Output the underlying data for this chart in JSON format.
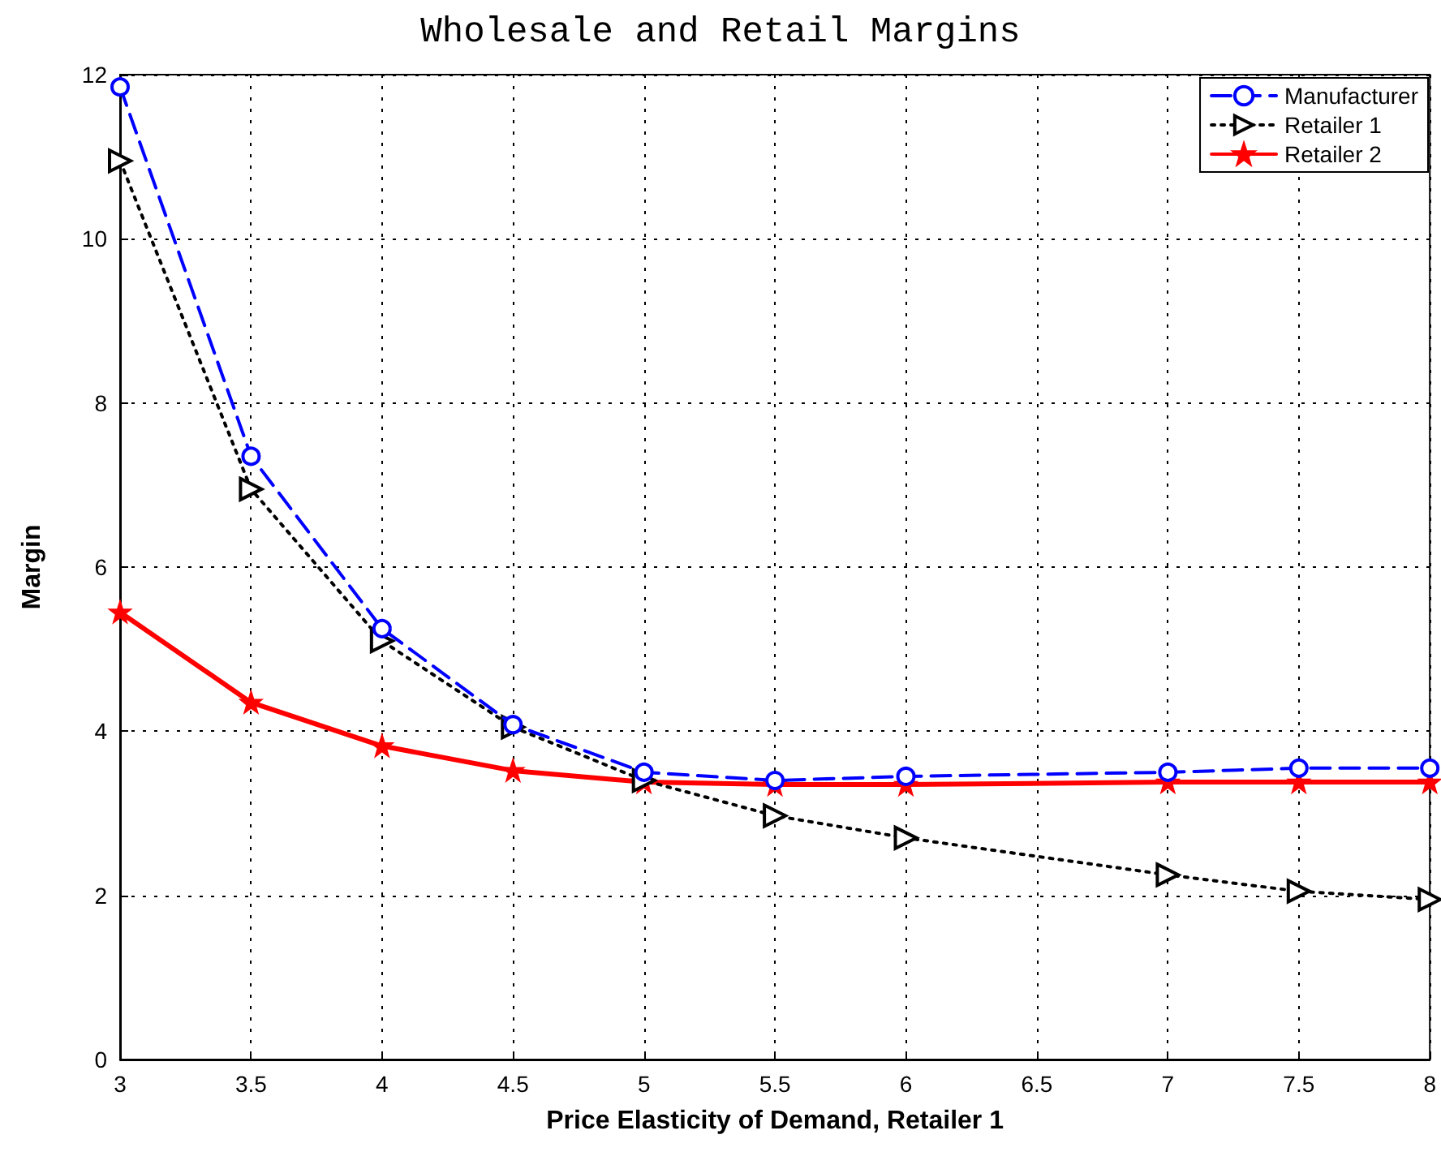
{
  "chart_data": {
    "type": "line",
    "title": "Wholesale and Retail Margins",
    "xlabel": "Price Elasticity of Demand, Retailer 1",
    "ylabel": "Margin",
    "x": [
      3,
      3.5,
      4,
      4.5,
      5,
      5.5,
      6,
      7,
      7.5,
      8
    ],
    "series": [
      {
        "name": "Manufacturer",
        "color": "#0000ff",
        "marker": "circle",
        "line_style": "dashed",
        "values": [
          11.85,
          7.35,
          5.25,
          4.08,
          3.5,
          3.4,
          3.45,
          3.5,
          3.55,
          3.55
        ]
      },
      {
        "name": "Retailer 1",
        "color": "#000000",
        "marker": "triangle",
        "line_style": "dotted",
        "values": [
          10.95,
          6.95,
          5.1,
          4.05,
          3.4,
          2.97,
          2.7,
          2.25,
          2.05,
          1.95
        ]
      },
      {
        "name": "Retailer 2",
        "color": "#ff0000",
        "marker": "star",
        "line_style": "solid",
        "values": [
          5.45,
          4.35,
          3.82,
          3.52,
          3.38,
          3.35,
          3.35,
          3.38,
          3.38,
          3.38
        ]
      }
    ],
    "xlim": [
      3,
      8
    ],
    "xticks": [
      3,
      3.5,
      4,
      4.5,
      5,
      5.5,
      6,
      6.5,
      7,
      7.5,
      8
    ],
    "ylim": [
      0,
      12
    ],
    "yticks": [
      0,
      2,
      4,
      6,
      8,
      10,
      12
    ],
    "grid": true,
    "legend": "top right"
  }
}
